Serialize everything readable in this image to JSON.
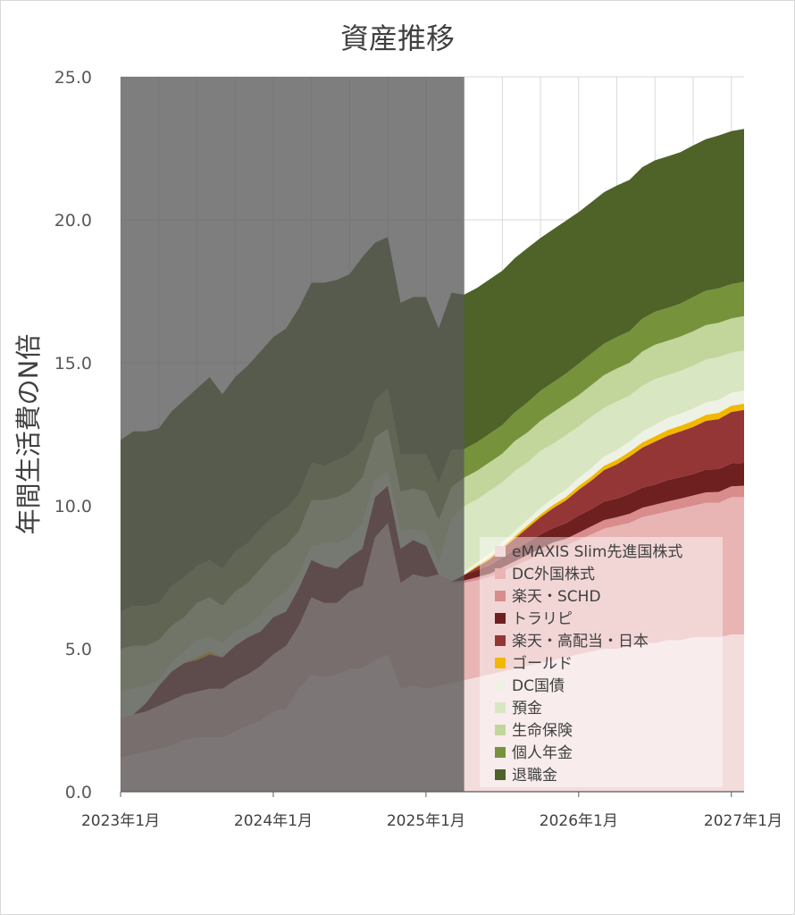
{
  "chart_data": {
    "type": "area",
    "stacked": true,
    "title": "資産推移",
    "xlabel": "",
    "ylabel": "年間生活費のN倍",
    "ylim": [
      0,
      25
    ],
    "yticks": [
      0,
      5,
      10,
      15,
      20,
      25
    ],
    "ytick_labels": [
      "0.0",
      "5.0",
      "10.0",
      "15.0",
      "20.0",
      "25.0"
    ],
    "xtick_labels": [
      "2023年1月",
      "2024年1月",
      "2025年1月",
      "2026年1月",
      "2027年1月"
    ],
    "x_start": "2023-01",
    "x_end": "2027-02",
    "grid": true,
    "legend_position": "right-bottom inside",
    "shaded_region": {
      "from": "2023-01",
      "to": "2025-04",
      "color": "#5a5a5a",
      "opacity": 0.78
    },
    "x": [
      "2023-01",
      "2023-02",
      "2023-03",
      "2023-04",
      "2023-05",
      "2023-06",
      "2023-07",
      "2023-08",
      "2023-09",
      "2023-10",
      "2023-11",
      "2023-12",
      "2024-01",
      "2024-02",
      "2024-03",
      "2024-04",
      "2024-05",
      "2024-06",
      "2024-07",
      "2024-08",
      "2024-09",
      "2024-10",
      "2024-11",
      "2024-12",
      "2025-01",
      "2025-02",
      "2025-03",
      "2025-04",
      "2025-05",
      "2025-06",
      "2025-07",
      "2025-08",
      "2025-09",
      "2025-10",
      "2025-11",
      "2025-12",
      "2026-01",
      "2026-02",
      "2026-03",
      "2026-04",
      "2026-05",
      "2026-06",
      "2026-07",
      "2026-08",
      "2026-09",
      "2026-10",
      "2026-11",
      "2026-12",
      "2027-01",
      "2027-02"
    ],
    "series": [
      {
        "name": "eMAXIS Slim先進国株式",
        "color": "#f3dcdc",
        "values": [
          1.2,
          1.3,
          1.4,
          1.5,
          1.6,
          1.8,
          1.9,
          1.9,
          1.9,
          2.1,
          2.3,
          2.5,
          2.8,
          2.9,
          3.6,
          4.1,
          4.0,
          4.1,
          4.3,
          4.3,
          4.6,
          4.8,
          3.6,
          3.7,
          3.6,
          3.7,
          3.8,
          3.9,
          4.0,
          4.1,
          4.2,
          4.3,
          4.4,
          4.5,
          4.6,
          4.7,
          4.8,
          4.9,
          5.0,
          5.0,
          5.1,
          5.2,
          5.2,
          5.3,
          5.3,
          5.4,
          5.4,
          5.4,
          5.5,
          5.5
        ]
      },
      {
        "name": "DC外国株式",
        "color": "#e8b4b4",
        "values": [
          1.4,
          1.4,
          1.4,
          1.5,
          1.6,
          1.6,
          1.6,
          1.7,
          1.7,
          1.8,
          1.8,
          1.9,
          2.0,
          2.2,
          2.2,
          2.7,
          2.6,
          2.5,
          2.7,
          2.9,
          4.3,
          4.6,
          3.7,
          3.9,
          3.9,
          3.9,
          3.5,
          3.4,
          3.4,
          3.4,
          3.5,
          3.6,
          3.7,
          3.8,
          3.9,
          3.9,
          4.0,
          4.1,
          4.2,
          4.3,
          4.3,
          4.4,
          4.5,
          4.5,
          4.6,
          4.6,
          4.7,
          4.7,
          4.8,
          4.8
        ]
      },
      {
        "name": "楽天・SCHD",
        "color": "#d88c8c",
        "values": [
          0,
          0,
          0,
          0,
          0,
          0,
          0,
          0,
          0,
          0,
          0,
          0,
          0,
          0,
          0,
          0,
          0,
          0,
          0,
          0,
          0,
          0,
          0,
          0,
          0,
          0,
          0.05,
          0.08,
          0.1,
          0.12,
          0.14,
          0.16,
          0.18,
          0.2,
          0.22,
          0.24,
          0.26,
          0.28,
          0.3,
          0.3,
          0.32,
          0.33,
          0.34,
          0.35,
          0.35,
          0.36,
          0.37,
          0.38,
          0.38,
          0.4
        ]
      },
      {
        "name": "トラリピ",
        "color": "#6e1f1f",
        "values": [
          0,
          0,
          0.3,
          0.7,
          1.0,
          1.1,
          1.1,
          1.2,
          1.1,
          1.2,
          1.3,
          1.2,
          1.3,
          1.2,
          1.3,
          1.3,
          1.3,
          1.2,
          1.2,
          1.3,
          1.4,
          1.3,
          1.2,
          1.2,
          1.1,
          0.0,
          0.0,
          0.2,
          0.25,
          0.3,
          0.35,
          0.4,
          0.45,
          0.5,
          0.5,
          0.55,
          0.6,
          0.6,
          0.65,
          0.65,
          0.7,
          0.7,
          0.7,
          0.75,
          0.75,
          0.75,
          0.8,
          0.8,
          0.8,
          0.8
        ]
      },
      {
        "name": "楽天・高配当・日本",
        "color": "#943636",
        "values": [
          0,
          0,
          0,
          0,
          0,
          0,
          0,
          0,
          0,
          0,
          0,
          0,
          0,
          0,
          0,
          0,
          0,
          0,
          0,
          0,
          0,
          0,
          0,
          0,
          0,
          0,
          0,
          0,
          0.1,
          0.2,
          0.3,
          0.4,
          0.5,
          0.6,
          0.7,
          0.8,
          0.9,
          1.0,
          1.1,
          1.2,
          1.3,
          1.4,
          1.5,
          1.55,
          1.6,
          1.65,
          1.7,
          1.75,
          1.8,
          1.85
        ]
      },
      {
        "name": "ゴールド",
        "color": "#f2b800",
        "values": [
          0,
          0,
          0,
          0,
          0,
          0,
          0.1,
          0.1,
          0,
          0,
          0,
          0,
          0,
          0,
          0,
          0,
          0,
          0,
          0,
          0,
          0,
          0,
          0,
          0,
          0,
          0,
          0,
          0,
          0.05,
          0.06,
          0.07,
          0.08,
          0.09,
          0.1,
          0.11,
          0.12,
          0.13,
          0.14,
          0.15,
          0.16,
          0.17,
          0.18,
          0.19,
          0.2,
          0.2,
          0.21,
          0.21,
          0.22,
          0.22,
          0.22
        ]
      },
      {
        "name": "DC国債",
        "color": "#eef2e4",
        "values": [
          0,
          0,
          0,
          0,
          0,
          0,
          0,
          0,
          0,
          0,
          0,
          0,
          0,
          0,
          0,
          0,
          0,
          0,
          0,
          0,
          0,
          0,
          0,
          0,
          0,
          0,
          0,
          0.1,
          0.12,
          0.14,
          0.16,
          0.18,
          0.2,
          0.22,
          0.24,
          0.26,
          0.28,
          0.3,
          0.32,
          0.34,
          0.36,
          0.38,
          0.4,
          0.42,
          0.42,
          0.43,
          0.44,
          0.45,
          0.45,
          0.46
        ]
      },
      {
        "name": "預金",
        "color": "#d9e6c2",
        "values": [
          0.9,
          0.9,
          0.6,
          0.2,
          0.3,
          0.4,
          0.6,
          0.5,
          0.5,
          0.5,
          0.4,
          0.6,
          0.6,
          0.7,
          0.5,
          0.5,
          0.8,
          0.9,
          0.7,
          0.9,
          0.6,
          0.5,
          0.6,
          0.4,
          0.5,
          0.4,
          2.2,
          2.3,
          2.2,
          2.2,
          2.1,
          2.1,
          2.0,
          2.0,
          1.9,
          1.9,
          1.8,
          1.8,
          1.7,
          1.7,
          1.6,
          1.6,
          1.6,
          1.5,
          1.5,
          1.5,
          1.5,
          1.5,
          1.4,
          1.4
        ]
      },
      {
        "name": "生命保険",
        "color": "#c2d69b",
        "values": [
          1.5,
          1.5,
          1.4,
          1.4,
          1.3,
          1.2,
          1.3,
          1.4,
          1.3,
          1.4,
          1.5,
          1.6,
          1.6,
          1.6,
          1.5,
          1.6,
          1.5,
          1.6,
          1.6,
          1.6,
          1.5,
          1.5,
          1.4,
          1.4,
          1.4,
          1.5,
          1.1,
          1.0,
          1.0,
          1.0,
          1.0,
          1.05,
          1.05,
          1.05,
          1.1,
          1.1,
          1.1,
          1.1,
          1.15,
          1.15,
          1.15,
          1.2,
          1.2,
          1.2,
          1.2,
          1.2,
          1.2,
          1.2,
          1.2,
          1.2
        ]
      },
      {
        "name": "個人年金",
        "color": "#76933c",
        "values": [
          1.3,
          1.4,
          1.4,
          1.3,
          1.4,
          1.4,
          1.3,
          1.3,
          1.3,
          1.4,
          1.4,
          1.4,
          1.3,
          1.3,
          1.3,
          1.3,
          1.2,
          1.3,
          1.3,
          1.3,
          1.3,
          1.4,
          1.3,
          1.2,
          1.3,
          1.3,
          1.3,
          1.0,
          1.0,
          1.0,
          1.0,
          1.0,
          1.05,
          1.05,
          1.05,
          1.05,
          1.1,
          1.1,
          1.1,
          1.1,
          1.1,
          1.15,
          1.15,
          1.15,
          1.15,
          1.2,
          1.2,
          1.2,
          1.2,
          1.2
        ]
      },
      {
        "name": "退職金",
        "color": "#4f6228",
        "values": [
          6.0,
          6.1,
          6.1,
          6.1,
          6.1,
          6.2,
          6.2,
          6.4,
          6.1,
          6.1,
          6.2,
          6.2,
          6.3,
          6.3,
          6.5,
          6.3,
          6.4,
          6.3,
          6.3,
          6.4,
          5.5,
          5.3,
          5.3,
          5.5,
          5.5,
          5.4,
          5.5,
          5.4,
          5.4,
          5.4,
          5.4,
          5.4,
          5.4,
          5.35,
          5.35,
          5.35,
          5.3,
          5.3,
          5.3,
          5.3,
          5.3,
          5.3,
          5.3,
          5.3,
          5.3,
          5.3,
          5.3,
          5.35,
          5.35,
          5.35
        ]
      }
    ]
  }
}
